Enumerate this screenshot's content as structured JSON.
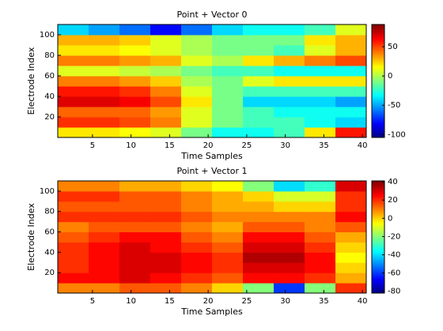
{
  "chart_data": [
    {
      "type": "heatmap",
      "title": "Point + Vector 0",
      "xlabel": "Time Samples",
      "ylabel": "Electrode Index",
      "colormap": "jet",
      "x": [
        2.5,
        6.5,
        10.5,
        14.5,
        18.5,
        22.5,
        26.5,
        30.5,
        34.5,
        38.5
      ],
      "y": [
        5,
        15,
        25,
        35,
        45,
        55,
        65,
        75,
        85,
        95,
        105
      ],
      "z": [
        [
          20,
          20,
          15,
          10,
          -10,
          -30,
          -30,
          -20,
          20,
          60
        ],
        [
          55,
          55,
          50,
          40,
          10,
          -10,
          -20,
          -20,
          -30,
          -40
        ],
        [
          45,
          45,
          45,
          35,
          10,
          -10,
          -20,
          -30,
          -30,
          -30
        ],
        [
          70,
          70,
          65,
          50,
          20,
          -10,
          -40,
          -40,
          -40,
          -50
        ],
        [
          60,
          60,
          55,
          40,
          10,
          -10,
          -20,
          -20,
          -20,
          -20
        ],
        [
          40,
          40,
          35,
          25,
          0,
          -10,
          10,
          20,
          20,
          20
        ],
        [
          10,
          10,
          5,
          0,
          -10,
          -20,
          -20,
          -30,
          -30,
          -30
        ],
        [
          40,
          40,
          35,
          30,
          10,
          0,
          20,
          30,
          40,
          50
        ],
        [
          20,
          20,
          15,
          10,
          0,
          -10,
          -10,
          -20,
          10,
          30
        ],
        [
          30,
          30,
          25,
          10,
          0,
          -10,
          -10,
          -10,
          20,
          30
        ],
        [
          -40,
          -50,
          -60,
          -80,
          -60,
          -40,
          -30,
          -30,
          -20,
          10
        ]
      ],
      "xlim": [
        0.5,
        40.5
      ],
      "ylim": [
        0,
        110
      ],
      "xticks": [
        5,
        10,
        15,
        20,
        25,
        30,
        35,
        40
      ],
      "yticks": [
        20,
        40,
        60,
        80,
        100
      ],
      "clim": [
        -105,
        88
      ],
      "cticks": [
        -100,
        -50,
        0,
        50
      ]
    },
    {
      "type": "heatmap",
      "title": "Point + Vector 1",
      "xlabel": "Time Samples",
      "ylabel": "Electrode Index",
      "colormap": "jet",
      "x": [
        2.5,
        6.5,
        10.5,
        14.5,
        18.5,
        22.5,
        26.5,
        30.5,
        34.5,
        38.5
      ],
      "y": [
        5,
        15,
        25,
        35,
        45,
        55,
        65,
        75,
        85,
        95,
        105
      ],
      "z": [
        [
          10,
          10,
          15,
          15,
          10,
          0,
          -20,
          -60,
          -20,
          20
        ],
        [
          25,
          25,
          30,
          25,
          20,
          15,
          25,
          25,
          20,
          5
        ],
        [
          20,
          25,
          30,
          30,
          25,
          20,
          30,
          30,
          25,
          0
        ],
        [
          20,
          25,
          30,
          30,
          25,
          20,
          35,
          35,
          25,
          -5
        ],
        [
          20,
          25,
          30,
          25,
          20,
          15,
          30,
          30,
          20,
          0
        ],
        [
          15,
          20,
          25,
          25,
          15,
          10,
          25,
          25,
          15,
          5
        ],
        [
          10,
          15,
          15,
          15,
          10,
          5,
          15,
          15,
          10,
          15
        ],
        [
          20,
          20,
          20,
          20,
          15,
          10,
          10,
          10,
          10,
          25
        ],
        [
          15,
          15,
          15,
          15,
          10,
          5,
          5,
          0,
          0,
          20
        ],
        [
          20,
          20,
          15,
          15,
          10,
          5,
          0,
          -10,
          -10,
          20
        ],
        [
          10,
          10,
          5,
          5,
          0,
          -5,
          -20,
          -40,
          -30,
          30
        ]
      ],
      "xlim": [
        0.5,
        40.5
      ],
      "ylim": [
        0,
        110
      ],
      "xticks": [
        5,
        10,
        15,
        20,
        25,
        30,
        35,
        40
      ],
      "yticks": [
        20,
        40,
        60,
        80,
        100
      ],
      "clim": [
        -82,
        41
      ],
      "cticks": [
        -80,
        -60,
        -40,
        -20,
        0,
        20,
        40
      ]
    }
  ]
}
